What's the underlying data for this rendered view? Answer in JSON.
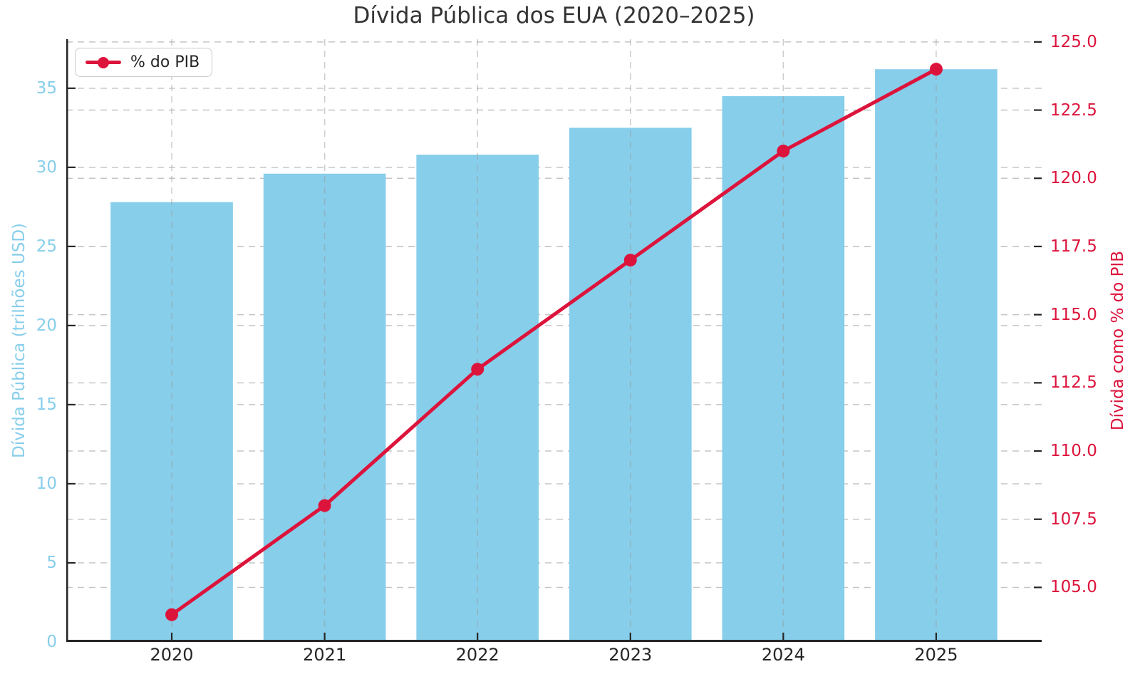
{
  "chart_data": {
    "type": "combo-bar-line",
    "title": "Dívida Pública dos EUA (2020–2025)",
    "categories": [
      "2020",
      "2021",
      "2022",
      "2023",
      "2024",
      "2025"
    ],
    "series": [
      {
        "name": "Dívida Pública",
        "kind": "bar",
        "axis": "left",
        "color": "#87CEEB",
        "values": [
          27.8,
          29.6,
          30.8,
          32.5,
          34.5,
          36.2
        ]
      },
      {
        "name": "% do PIB",
        "kind": "line",
        "axis": "right",
        "color": "#DC143C",
        "marker": "circle",
        "values": [
          104,
          108,
          113,
          117,
          121,
          124
        ]
      }
    ],
    "left_axis": {
      "label": "Dívida Pública (trilhões USD)",
      "color": "#87CEEB",
      "ticks": [
        0,
        5,
        10,
        15,
        20,
        25,
        30,
        35
      ],
      "range": [
        0,
        38.1
      ]
    },
    "right_axis": {
      "label": "Dívida como % do PIB",
      "color": "#DC143C",
      "ticks": [
        105,
        107.5,
        110,
        112.5,
        115,
        117.5,
        120,
        122.5,
        125
      ],
      "decimals": 1,
      "range": [
        103.0,
        125.1
      ]
    },
    "x_axis": {
      "tick_values": [
        2020,
        2021,
        2022,
        2023,
        2024,
        2025
      ],
      "range": [
        2019.31,
        2025.69
      ]
    },
    "bar_width": 0.8,
    "legend": {
      "label": "% do PIB",
      "position": "upper-left"
    },
    "grid": {
      "style": "dashed",
      "h_color": "#c5c5c5",
      "v_color": "#999999",
      "v_opacity": 0.5
    },
    "spine_color": "#262626",
    "text_color": "#333333",
    "background": "#ffffff"
  }
}
